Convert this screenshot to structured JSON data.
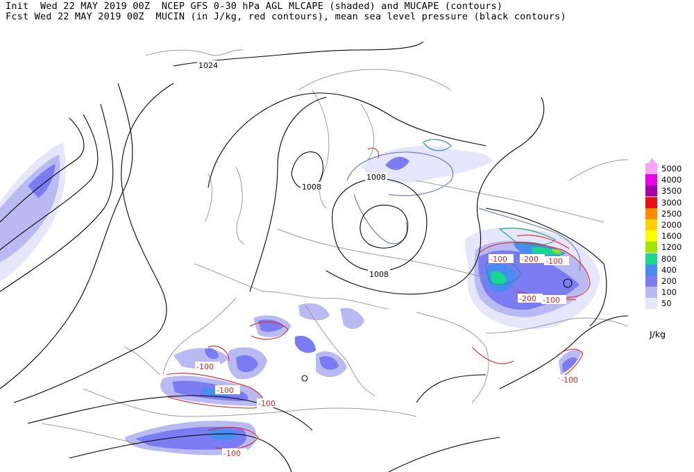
{
  "header": {
    "line1": "Init  Wed 22 MAY 2019 00Z  NCEP GFS 0-30 hPa AGL MLCAPE (shaded) and MUCAPE (contours)",
    "line2": "Fcst Wed 22 MAY 2019 00Z  MUCIN (in J/kg, red contours), mean sea level pressure (black contours)"
  },
  "legend": {
    "units": "J/kg",
    "levels": [
      {
        "label": "5000",
        "color": "#f7a6f7"
      },
      {
        "label": "4000",
        "color": "#e800e8"
      },
      {
        "label": "3500",
        "color": "#a800a8"
      },
      {
        "label": "3000",
        "color": "#e81010"
      },
      {
        "label": "2500",
        "color": "#ff8c00"
      },
      {
        "label": "2000",
        "color": "#ffd200"
      },
      {
        "label": "1600",
        "color": "#ffff00"
      },
      {
        "label": "1200",
        "color": "#a0e600"
      },
      {
        "label": "800",
        "color": "#18d890"
      },
      {
        "label": "400",
        "color": "#4b8cf0"
      },
      {
        "label": "200",
        "color": "#7c7cf2"
      },
      {
        "label": "100",
        "color": "#babaf2"
      },
      {
        "label": "50",
        "color": "#e6e6fa"
      }
    ]
  },
  "map": {
    "pressure_labels": [
      "1024",
      "1008",
      "1008",
      "1008"
    ],
    "cin_labels": [
      "-100",
      "-200",
      "-100",
      "-200",
      "-100",
      "-100",
      "-100",
      "-100",
      "-100",
      "-100"
    ]
  }
}
